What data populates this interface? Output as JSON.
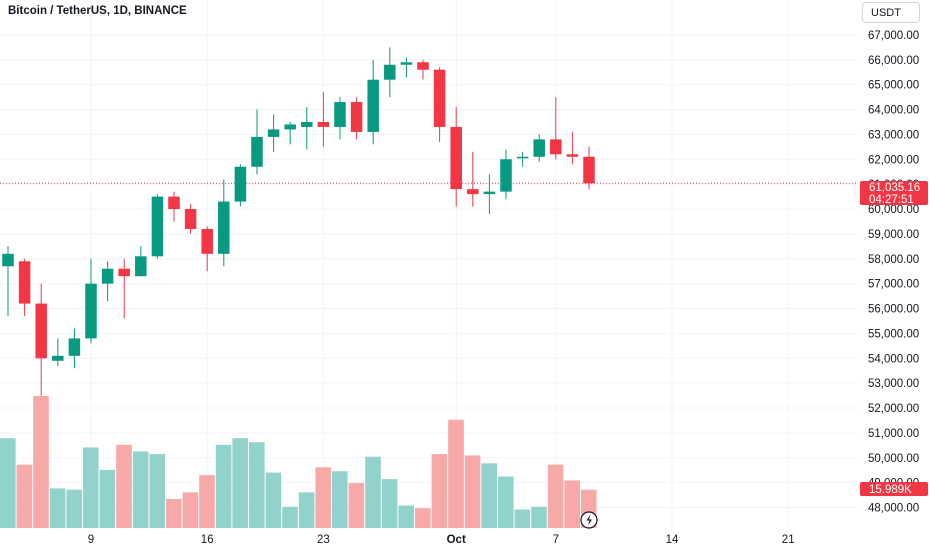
{
  "header": {
    "title": "Bitcoin / TetherUS, 1D, BINANCE",
    "currency": "USDT"
  },
  "price_tag": {
    "price": "61,035.16",
    "countdown": "04:27:51"
  },
  "volume_tag": {
    "value": "15.989K"
  },
  "colors": {
    "up": "#089981",
    "down": "#f23645",
    "up_vol": "#92d2cc",
    "down_vol": "#f7a9a7",
    "grid": "#f0f3fa"
  },
  "chart_data": {
    "type": "candlestick",
    "symbol": "BTCUSDT",
    "interval": "1D",
    "ylim": [
      47500,
      67800
    ],
    "y_ticks": [
      48000,
      49000,
      50000,
      51000,
      52000,
      53000,
      54000,
      55000,
      56000,
      57000,
      58000,
      59000,
      60000,
      61000,
      62000,
      63000,
      64000,
      65000,
      66000,
      67000
    ],
    "y_tick_labels": [
      "48,000.00",
      "49,000.00",
      "50,000.00",
      "51,000.00",
      "52,000.00",
      "53,000.00",
      "54,000.00",
      "55,000.00",
      "56,000.00",
      "57,000.00",
      "58,000.00",
      "59,000.00",
      "60,000.00",
      "61,000.00",
      "62,000.00",
      "63,000.00",
      "64,000.00",
      "65,000.00",
      "66,000.00",
      "67,000.00"
    ],
    "x_ticks": [
      {
        "index": 5,
        "label": "9"
      },
      {
        "index": 12,
        "label": "16"
      },
      {
        "index": 19,
        "label": "23"
      },
      {
        "index": 27,
        "label": "Oct"
      },
      {
        "index": 33,
        "label": "7"
      },
      {
        "index": 40,
        "label": "14"
      },
      {
        "index": 47,
        "label": "21"
      }
    ],
    "last_price": 61035.16,
    "candles": [
      {
        "o": 57700,
        "h": 58500,
        "l": 55700,
        "c": 58200,
        "v": 0.68
      },
      {
        "o": 57900,
        "h": 58000,
        "l": 55700,
        "c": 56200,
        "v": 0.48
      },
      {
        "o": 56200,
        "h": 57000,
        "l": 52500,
        "c": 54000,
        "v": 1.0
      },
      {
        "o": 53900,
        "h": 54800,
        "l": 53700,
        "c": 54100,
        "v": 0.3
      },
      {
        "o": 54100,
        "h": 55200,
        "l": 53600,
        "c": 54800,
        "v": 0.29
      },
      {
        "o": 54800,
        "h": 58000,
        "l": 54600,
        "c": 57000,
        "v": 0.61
      },
      {
        "o": 57000,
        "h": 57900,
        "l": 56300,
        "c": 57600,
        "v": 0.44
      },
      {
        "o": 57600,
        "h": 58000,
        "l": 55600,
        "c": 57300,
        "v": 0.63
      },
      {
        "o": 57300,
        "h": 58500,
        "l": 57300,
        "c": 58100,
        "v": 0.58
      },
      {
        "o": 58100,
        "h": 60600,
        "l": 58000,
        "c": 60500,
        "v": 0.56
      },
      {
        "o": 60500,
        "h": 60700,
        "l": 59500,
        "c": 60000,
        "v": 0.22
      },
      {
        "o": 60000,
        "h": 60200,
        "l": 59000,
        "c": 59200,
        "v": 0.27
      },
      {
        "o": 59200,
        "h": 59300,
        "l": 57500,
        "c": 58200,
        "v": 0.4
      },
      {
        "o": 58200,
        "h": 61200,
        "l": 57700,
        "c": 60300,
        "v": 0.63
      },
      {
        "o": 60300,
        "h": 61800,
        "l": 60100,
        "c": 61700,
        "v": 0.68
      },
      {
        "o": 61700,
        "h": 64000,
        "l": 61400,
        "c": 62900,
        "v": 0.65
      },
      {
        "o": 62900,
        "h": 63800,
        "l": 62300,
        "c": 63200,
        "v": 0.42
      },
      {
        "o": 63200,
        "h": 63500,
        "l": 62600,
        "c": 63400,
        "v": 0.16
      },
      {
        "o": 63300,
        "h": 64100,
        "l": 62400,
        "c": 63500,
        "v": 0.27
      },
      {
        "o": 63500,
        "h": 64700,
        "l": 62500,
        "c": 63300,
        "v": 0.46
      },
      {
        "o": 63300,
        "h": 64500,
        "l": 62800,
        "c": 64300,
        "v": 0.43
      },
      {
        "o": 64300,
        "h": 64500,
        "l": 62800,
        "c": 63100,
        "v": 0.34
      },
      {
        "o": 63100,
        "h": 66000,
        "l": 62600,
        "c": 65200,
        "v": 0.54
      },
      {
        "o": 65200,
        "h": 66500,
        "l": 64500,
        "c": 65800,
        "v": 0.37
      },
      {
        "o": 65800,
        "h": 66100,
        "l": 65300,
        "c": 65900,
        "v": 0.17
      },
      {
        "o": 65900,
        "h": 66000,
        "l": 65200,
        "c": 65600,
        "v": 0.15
      },
      {
        "o": 65600,
        "h": 65700,
        "l": 62700,
        "c": 63300,
        "v": 0.56
      },
      {
        "o": 63300,
        "h": 64100,
        "l": 60100,
        "c": 60800,
        "v": 0.82
      },
      {
        "o": 60800,
        "h": 62300,
        "l": 60100,
        "c": 60600,
        "v": 0.55
      },
      {
        "o": 60600,
        "h": 61400,
        "l": 59800,
        "c": 60700,
        "v": 0.49
      },
      {
        "o": 60700,
        "h": 62400,
        "l": 60400,
        "c": 62000,
        "v": 0.39
      },
      {
        "o": 62100,
        "h": 62300,
        "l": 61700,
        "c": 62100,
        "v": 0.14
      },
      {
        "o": 62100,
        "h": 63000,
        "l": 61900,
        "c": 62800,
        "v": 0.16
      },
      {
        "o": 62800,
        "h": 64500,
        "l": 62000,
        "c": 62200,
        "v": 0.48
      },
      {
        "o": 62200,
        "h": 63100,
        "l": 61800,
        "c": 62100,
        "v": 0.36
      },
      {
        "o": 62100,
        "h": 62500,
        "l": 60800,
        "c": 61035.16,
        "v": 0.29
      }
    ]
  }
}
